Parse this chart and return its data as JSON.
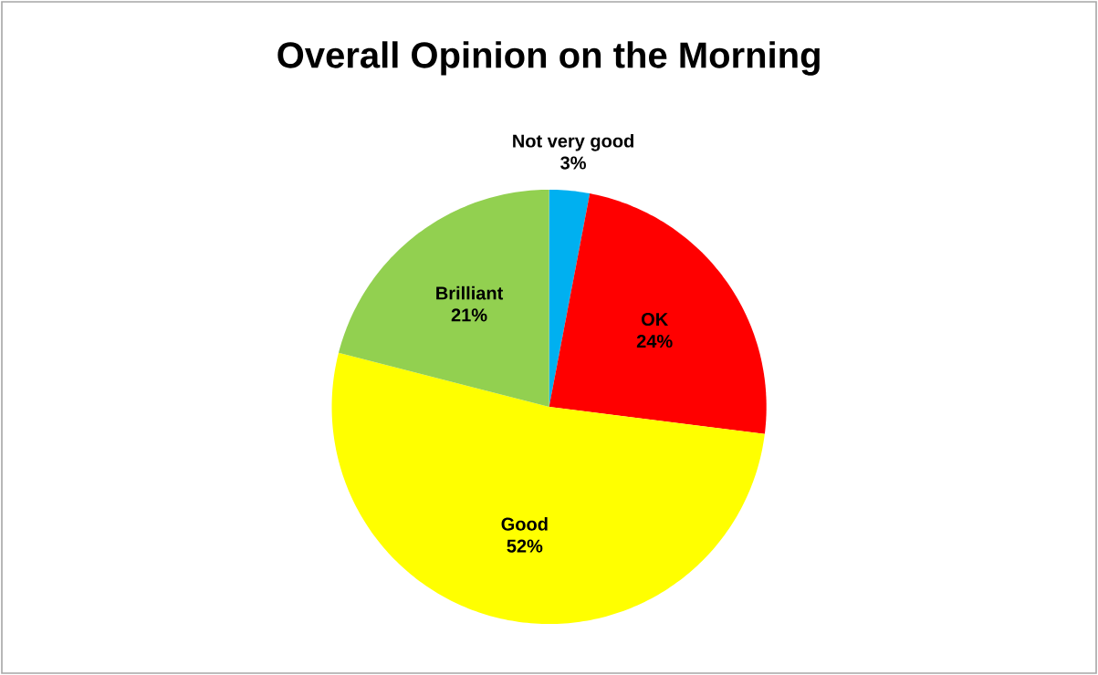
{
  "chart_data": {
    "type": "pie",
    "title": "Overall Opinion on the Morning",
    "categories": [
      "Not very good",
      "OK",
      "Good",
      "Brilliant"
    ],
    "values": [
      3,
      24,
      52,
      21
    ],
    "value_labels": [
      "3%",
      "24%",
      "52%",
      "21%"
    ],
    "colors": [
      "#00b0f0",
      "#ff0000",
      "#ffff00",
      "#92d050"
    ]
  }
}
